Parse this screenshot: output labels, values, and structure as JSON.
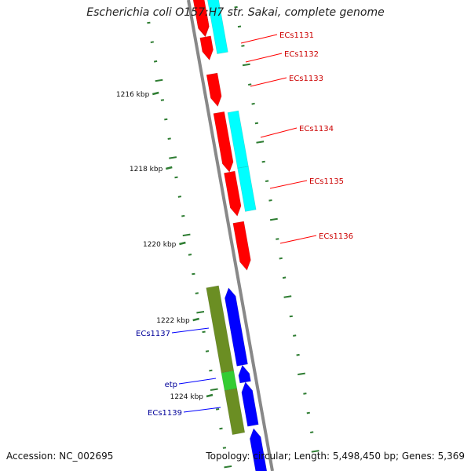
{
  "title": "Escherichia coli O157:H7 str. Sakai, complete genome",
  "footer": {
    "accession": "Accession: NC_002695",
    "topology": "Topology: circular; Length: 5,498,450 bp; Genes: 5,369"
  },
  "colors": {
    "backbone": "#888888",
    "tick": "#2e7d32",
    "forward_cds": "#ff0000",
    "reverse_cds": "#0000ff",
    "forward_blast": "#00ffff",
    "reverse_blast": "#6b8e23",
    "highlight": "#33cc33",
    "forward_label": "#cc0000",
    "reverse_label": "#000099"
  },
  "scale_labels": [
    "1216 kbp",
    "1218 kbp",
    "1220 kbp",
    "1222 kbp",
    "1224 kbp"
  ],
  "forward_genes": [
    {
      "label": "ECs1131"
    },
    {
      "label": "ECs1132"
    },
    {
      "label": "ECs1133"
    },
    {
      "label": "ECs1134"
    },
    {
      "label": "ECs1135"
    },
    {
      "label": "ECs1136"
    }
  ],
  "reverse_genes": [
    {
      "label": "ECs1137"
    },
    {
      "label": "etp"
    },
    {
      "label": "ECs1139"
    }
  ]
}
